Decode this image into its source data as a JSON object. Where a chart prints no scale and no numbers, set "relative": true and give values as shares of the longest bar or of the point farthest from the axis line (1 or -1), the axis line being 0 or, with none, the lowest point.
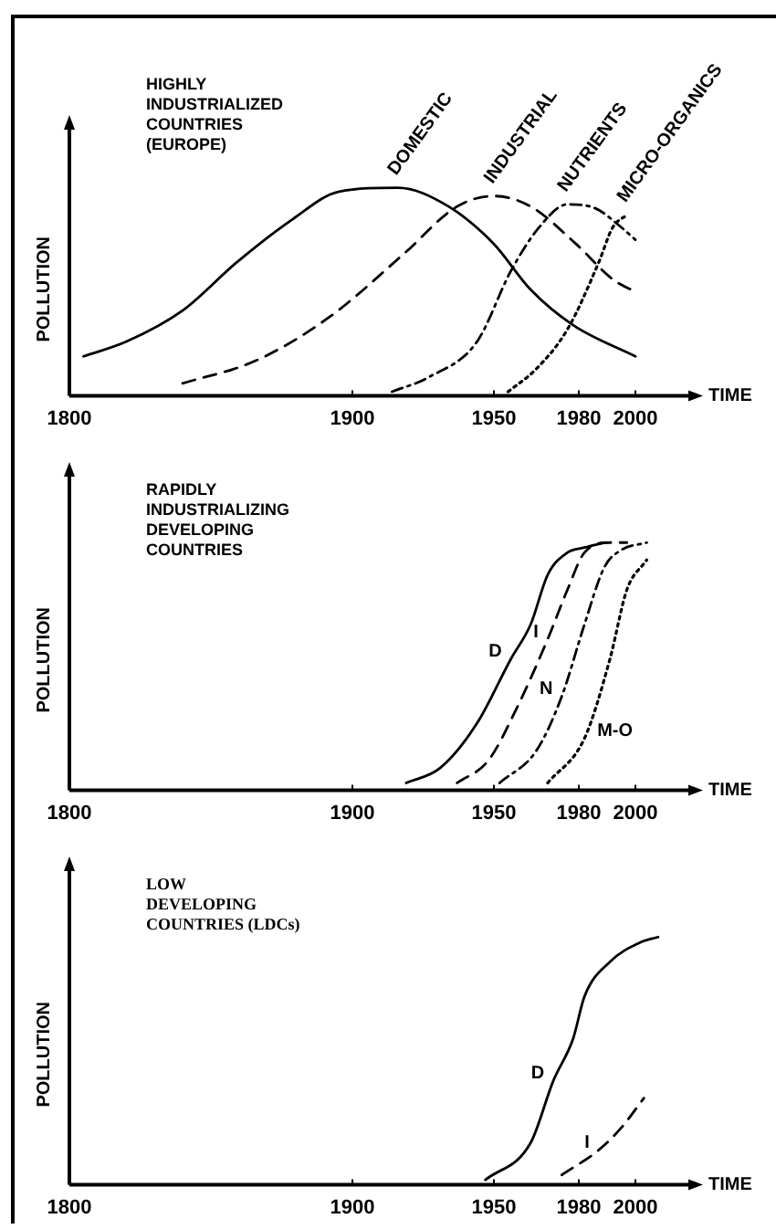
{
  "chart_data": [
    {
      "type": "line",
      "title": "HIGHLY\nINDUSTRIALIZED\nCOUNTRIES\n(EUROPE)",
      "xlabel": "TIME",
      "ylabel": "POLLUTION",
      "relative": true,
      "xlim": [
        1800,
        2020
      ],
      "xticks": [
        1800,
        1900,
        1950,
        1980,
        2000
      ],
      "grid": false,
      "legend": false,
      "marker": "none",
      "series": [
        {
          "name": "DOMESTIC",
          "color": "#000000",
          "line_style": "solid",
          "x": [
            1805,
            1820,
            1840,
            1859,
            1879,
            1895,
            1916,
            1934,
            1950,
            1963,
            1978,
            2000
          ],
          "values": [
            0.19,
            0.26,
            0.41,
            0.64,
            0.85,
            0.98,
            1.0,
            0.91,
            0.73,
            0.51,
            0.34,
            0.19
          ]
        },
        {
          "name": "INDUSTRIAL",
          "color": "#000000",
          "line_style": "dashed",
          "x": [
            1840,
            1866,
            1892,
            1918,
            1937,
            1950,
            1963,
            1979,
            1992,
            2000
          ],
          "values": [
            0.06,
            0.17,
            0.38,
            0.68,
            0.91,
            0.96,
            0.91,
            0.73,
            0.56,
            0.5
          ]
        },
        {
          "name": "NUTRIENTS",
          "color": "#000000",
          "line_style": "dashdot",
          "x": [
            1914,
            1927,
            1944,
            1956,
            1966,
            1976,
            1986,
            1995,
            2000
          ],
          "values": [
            0.02,
            0.09,
            0.26,
            0.6,
            0.81,
            0.92,
            0.9,
            0.81,
            0.75
          ]
        },
        {
          "name": "MICRO-ORGANICS",
          "color": "#000000",
          "line_style": "dotted",
          "x": [
            1955,
            1965,
            1976,
            1987,
            1992,
            1997
          ],
          "values": [
            0.02,
            0.13,
            0.32,
            0.64,
            0.81,
            0.87
          ]
        }
      ]
    },
    {
      "type": "line",
      "title": "RAPIDLY\nINDUSTRIALIZING\nDEVELOPING\nCOUNTRIES",
      "xlabel": "TIME",
      "ylabel": "POLLUTION",
      "relative": true,
      "xlim": [
        1800,
        2020
      ],
      "xticks": [
        1800,
        1900,
        1950,
        1980,
        2000
      ],
      "grid": false,
      "legend": false,
      "marker": "none",
      "series": [
        {
          "name": "D",
          "color": "#000000",
          "line_style": "solid",
          "x": [
            1919,
            1931,
            1944,
            1956,
            1963,
            1969,
            1976,
            1982,
            1989
          ],
          "values": [
            0.03,
            0.09,
            0.27,
            0.53,
            0.67,
            0.87,
            0.96,
            0.98,
            1.0
          ]
        },
        {
          "name": "I",
          "color": "#000000",
          "line_style": "dashed",
          "x": [
            1937,
            1948,
            1958,
            1969,
            1976,
            1982,
            1991,
            1997
          ],
          "values": [
            0.03,
            0.12,
            0.33,
            0.61,
            0.81,
            0.96,
            1.0,
            1.0
          ]
        },
        {
          "name": "N",
          "color": "#000000",
          "line_style": "dashdot",
          "x": [
            1952,
            1965,
            1974,
            1982,
            1989,
            1995,
            2004
          ],
          "values": [
            0.03,
            0.16,
            0.38,
            0.67,
            0.9,
            0.97,
            1.0
          ]
        },
        {
          "name": "M-O",
          "color": "#000000",
          "line_style": "dotted",
          "x": [
            1969,
            1982,
            1991,
            1997,
            2004
          ],
          "values": [
            0.03,
            0.21,
            0.53,
            0.81,
            0.93
          ]
        }
      ]
    },
    {
      "type": "line",
      "title": "LOW\nDEVELOPING\nCOUNTRIES (LDCs)",
      "xlabel": "TIME",
      "ylabel": "POLLUTION",
      "relative": true,
      "xlim": [
        1800,
        2020
      ],
      "xticks": [
        1800,
        1900,
        1950,
        1980,
        2000
      ],
      "grid": false,
      "legend": false,
      "marker": "none",
      "series": [
        {
          "name": "D",
          "color": "#000000",
          "line_style": "solid",
          "x": [
            1947,
            1963,
            1971,
            1978,
            1982,
            1991,
            2002,
            2008
          ],
          "values": [
            0.02,
            0.17,
            0.42,
            0.59,
            0.76,
            0.9,
            0.98,
            1.0
          ]
        },
        {
          "name": "I",
          "color": "#000000",
          "line_style": "dashed",
          "x": [
            1974,
            1987,
            1995,
            2003
          ],
          "values": [
            0.04,
            0.14,
            0.23,
            0.35
          ]
        }
      ]
    }
  ]
}
